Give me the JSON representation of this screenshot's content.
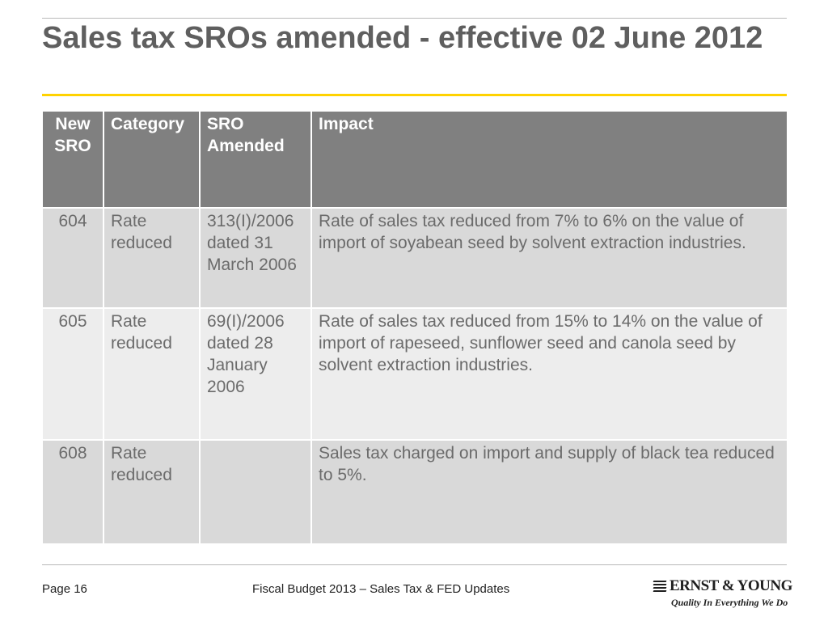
{
  "slide": {
    "title": "Sales tax SROs amended - effective 02 June 2012"
  },
  "table": {
    "headers": [
      "New SRO",
      "Category",
      "SRO Amended",
      "Impact"
    ],
    "rows": [
      {
        "new_sro": "604",
        "category": "Rate reduced",
        "sro_amended": "313(I)/2006 dated 31 March 2006",
        "impact": "Rate of sales tax reduced from 7% to 6% on the value of import of soyabean seed by solvent extraction industries."
      },
      {
        "new_sro": "605",
        "category": "Rate reduced",
        "sro_amended": "69(I)/2006 dated 28 January 2006",
        "impact": "Rate of sales tax reduced from 15% to 14% on the value of import of rapeseed, sunflower seed and canola seed by solvent extraction industries."
      },
      {
        "new_sro": "608",
        "category": "Rate reduced",
        "sro_amended": "",
        "impact": "Sales tax charged on import and supply of black tea reduced to 5%."
      }
    ]
  },
  "footer": {
    "page_label": "Page 16",
    "center_text": "Fiscal Budget 2013 – Sales Tax & FED Updates",
    "logo_name": "ERNST & YOUNG",
    "logo_tagline": "Quality In Everything We Do"
  },
  "colors": {
    "title_text": "#5f5f5f",
    "title_rule": "#ffd200",
    "header_bg": "#808080",
    "row_odd_bg": "#d9d9d9",
    "row_even_bg": "#ededed"
  }
}
